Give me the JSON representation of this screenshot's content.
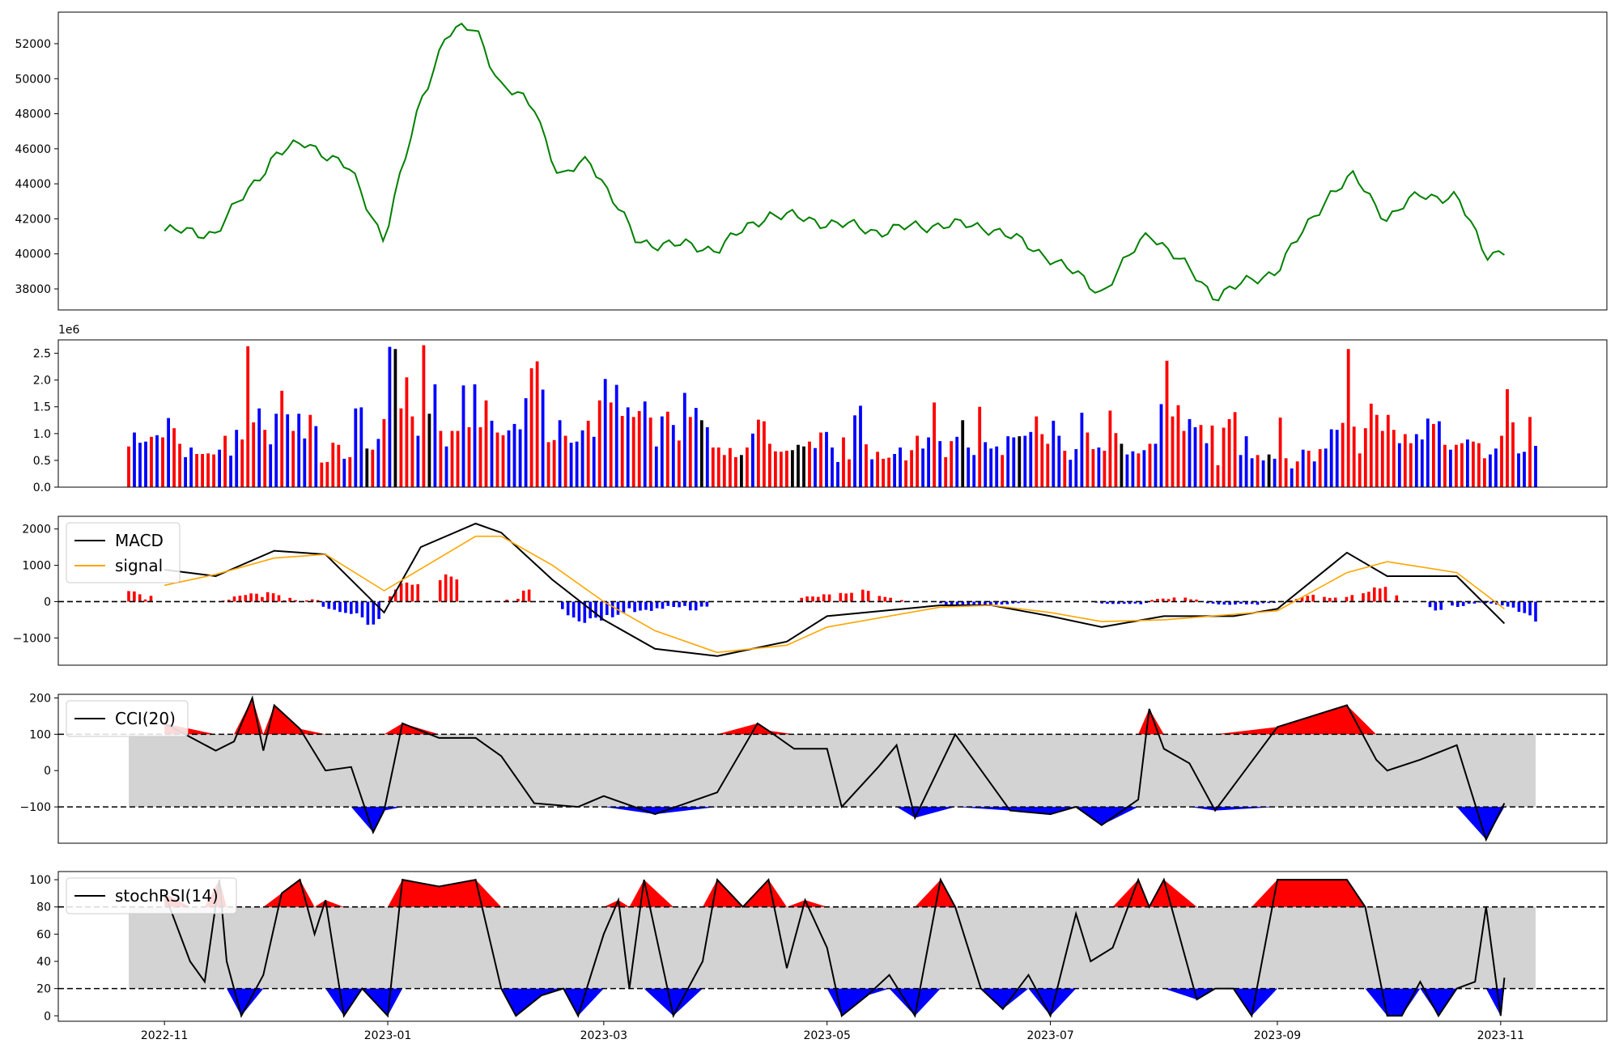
{
  "chart_data": [
    {
      "type": "line",
      "panel": "price",
      "ylim": [
        36800,
        53800
      ],
      "yticks": [
        "38000",
        "40000",
        "42000",
        "44000",
        "46000",
        "48000",
        "50000",
        "52000"
      ],
      "grid": false,
      "colors": {
        "line": "#008000"
      },
      "x": [
        "2022-11-01",
        "2022-11-15",
        "2022-12-01",
        "2022-12-10",
        "2022-12-22",
        "2022-12-31",
        "2023-01-10",
        "2023-01-17",
        "2023-01-25",
        "2023-02-01",
        "2023-02-10",
        "2023-02-17",
        "2023-02-25",
        "2023-03-10",
        "2023-04-01",
        "2023-04-15",
        "2023-05-01",
        "2023-05-15",
        "2023-06-01",
        "2023-06-15",
        "2023-07-01",
        "2023-07-15",
        "2023-07-28",
        "2023-08-15",
        "2023-09-01",
        "2023-09-15",
        "2023-09-22",
        "2023-10-01",
        "2023-10-10",
        "2023-10-20",
        "2023-10-28",
        "2023-11-02"
      ],
      "values": [
        41300,
        41200,
        45600,
        46400,
        44700,
        40800,
        48800,
        52500,
        53000,
        49500,
        48500,
        44200,
        45500,
        40700,
        40300,
        42300,
        41800,
        41300,
        41700,
        41500,
        39800,
        37800,
        41300,
        37600,
        39100,
        43400,
        44400,
        42000,
        43400,
        43200,
        40000,
        40200
      ]
    },
    {
      "type": "bar",
      "panel": "volume",
      "ylim": [
        0,
        2.75
      ],
      "yticks": [
        "0.0",
        "0.5",
        "1.0",
        "1.5",
        "2.0",
        "2.5"
      ],
      "offset_label": "1e6",
      "colors": {
        "up": "#ff0000",
        "down": "#0000ff",
        "flat": "#000000"
      },
      "values": [
        0.76,
        1.02,
        0.83,
        0.85,
        0.94,
        0.97,
        0.93,
        1.29,
        1.1,
        0.81,
        0.56,
        0.74,
        0.62,
        0.62,
        0.63,
        0.61,
        0.7,
        0.96,
        0.59,
        1.07,
        0.89,
        2.63,
        1.21,
        1.47,
        1.07,
        0.8,
        1.37,
        1.8,
        1.36,
        1.05,
        1.37,
        0.91,
        1.35,
        1.14,
        0.46,
        0.47,
        0.83,
        0.79,
        0.53,
        0.56,
        1.47,
        1.49,
        0.72,
        0.7,
        0.9,
        1.27,
        2.62,
        2.58,
        1.47,
        2.05,
        1.32,
        0.96,
        2.65,
        1.37,
        1.92,
        1.05,
        0.76,
        1.05,
        1.05,
        1.9,
        1.12,
        1.92,
        1.12,
        1.62,
        1.24,
        1.02,
        0.97,
        1.06,
        1.18,
        1.08,
        1.66,
        2.22,
        2.35,
        1.82,
        0.84,
        0.88,
        1.25,
        0.96,
        0.83,
        0.85,
        1.06,
        1.24,
        0.94,
        1.62,
        2.02,
        1.58,
        1.91,
        1.33,
        1.49,
        1.31,
        1.42,
        1.6,
        1.3,
        0.76,
        1.32,
        1.41,
        1.16,
        0.87,
        1.76,
        1.31,
        1.48,
        1.25,
        1.12,
        0.74,
        0.74,
        0.6,
        0.73,
        0.56,
        0.6,
        0.74,
        1.0,
        1.26,
        1.23,
        0.81,
        0.67,
        0.66,
        0.68,
        0.69,
        0.79,
        0.76,
        0.85,
        0.73,
        1.02,
        1.03,
        0.74,
        0.47,
        0.93,
        0.52,
        1.34,
        1.52,
        0.8,
        0.52,
        0.66,
        0.53,
        0.55,
        0.62,
        0.74,
        0.5,
        0.69,
        0.96,
        0.72,
        0.93,
        1.58,
        0.86,
        0.56,
        0.86,
        0.94,
        1.25,
        0.74,
        0.6,
        1.5,
        0.84,
        0.72,
        0.76,
        0.6,
        0.95,
        0.93,
        0.95,
        0.96,
        1.03,
        1.32,
        0.99,
        0.81,
        1.24,
        0.96,
        0.68,
        0.51,
        0.71,
        1.39,
        1.02,
        0.71,
        0.74,
        0.68,
        1.43,
        1.01,
        0.81,
        0.61,
        0.67,
        0.63,
        0.69,
        0.81,
        0.81,
        1.55,
        2.36,
        1.32,
        1.53,
        1.05,
        1.27,
        1.12,
        1.16,
        0.82,
        1.15,
        0.41,
        1.11,
        1.27,
        1.4,
        0.6,
        0.95,
        0.54,
        0.6,
        0.5,
        0.61,
        0.53,
        1.3,
        0.54,
        0.35,
        0.48,
        0.7,
        0.68,
        0.48,
        0.71,
        0.72,
        1.08,
        1.07,
        1.2,
        2.58,
        1.13,
        0.63,
        1.1,
        1.56,
        1.35,
        1.05,
        1.35,
        1.07,
        0.82,
        0.99,
        0.82,
        0.99,
        0.89,
        1.28,
        1.18,
        1.23,
        0.79,
        0.7,
        0.79,
        0.82,
        0.89,
        0.85,
        0.82,
        0.54,
        0.61,
        0.72,
        0.96,
        1.83,
        1.21,
        0.63,
        0.66,
        1.31,
        0.77
      ],
      "bar_colors": "rbbbrbrbrrbbrrrrbrbbrrrbrbbrbrbbrbrrrrbrbbkrbrbkrrrbrkbrbrrbrbrrbrrbbbbrrbrrbrbbbrbrbrbrbrrbrbbrbrbrbkbrrrrrkrbrrrrrrkkkrbrbbbrrbbrbrrrbbrrrbbrbrrbkbbrbbbrbbkbbrrrbbrbbbrrbrrrkbbrbrbbrrrrbbrbrrrrrbbbrbkbrrbrbrbrbbbrrrrrrrrrrbrrbbbrbrbrrbrrrbbrrrbbrbbrrbrrbbrbrbrrbr"
    },
    {
      "type": "line",
      "panel": "macd",
      "ylim": [
        -1750,
        2350
      ],
      "yticks": [
        "−1000",
        "0",
        "1000",
        "2000"
      ],
      "legend": [
        "MACD",
        "signal"
      ],
      "legend_position": "upper-left",
      "colors": {
        "macd": "#000000",
        "signal": "#ffa500",
        "hist_up": "#ff0000",
        "hist_down": "#0000ff"
      },
      "series": [
        {
          "name": "MACD",
          "x": [
            "2022-11-01",
            "2022-11-15",
            "2022-12-01",
            "2022-12-15",
            "2022-12-31",
            "2023-01-10",
            "2023-01-25",
            "2023-02-01",
            "2023-02-15",
            "2023-03-01",
            "2023-03-15",
            "2023-04-01",
            "2023-04-20",
            "2023-05-01",
            "2023-06-01",
            "2023-06-15",
            "2023-07-01",
            "2023-07-15",
            "2023-08-01",
            "2023-08-20",
            "2023-09-01",
            "2023-09-20",
            "2023-10-01",
            "2023-10-20",
            "2023-11-02"
          ],
          "values": [
            880,
            700,
            1400,
            1300,
            -300,
            1500,
            2150,
            1900,
            600,
            -500,
            -1300,
            -1500,
            -1100,
            -400,
            -100,
            -100,
            -400,
            -700,
            -400,
            -400,
            -200,
            1350,
            700,
            700,
            -600
          ]
        },
        {
          "name": "signal",
          "x": [
            "2022-11-01",
            "2022-11-15",
            "2022-12-01",
            "2022-12-15",
            "2022-12-31",
            "2023-01-10",
            "2023-01-25",
            "2023-02-01",
            "2023-02-15",
            "2023-03-01",
            "2023-03-15",
            "2023-04-01",
            "2023-04-20",
            "2023-05-01",
            "2023-06-01",
            "2023-06-15",
            "2023-07-01",
            "2023-07-15",
            "2023-08-01",
            "2023-08-20",
            "2023-09-01",
            "2023-09-20",
            "2023-10-01",
            "2023-10-20",
            "2023-11-02"
          ],
          "values": [
            450,
            750,
            1200,
            1300,
            300,
            900,
            1800,
            1800,
            1000,
            0,
            -800,
            -1400,
            -1200,
            -700,
            -150,
            -100,
            -300,
            -550,
            -500,
            -350,
            -250,
            800,
            1100,
            800,
            -200
          ]
        }
      ],
      "hist": [
        290,
        280,
        202,
        60,
        160,
        0,
        0,
        0,
        0,
        0,
        0,
        0,
        0,
        0,
        0,
        0,
        0,
        28,
        52,
        141,
        164,
        182,
        227,
        218,
        126,
        260,
        231,
        177,
        35,
        105,
        41,
        13,
        35,
        63,
        42,
        -140,
        -199,
        -223,
        -282,
        -309,
        -339,
        -319,
        -432,
        -634,
        -629,
        -477,
        0,
        148,
        334,
        505,
        525,
        465,
        479,
        0,
        0,
        0,
        592,
        749,
        690,
        611,
        0,
        0,
        0,
        0,
        0,
        25,
        0,
        0,
        52,
        0,
        77,
        302,
        331,
        0,
        0,
        0,
        0,
        0,
        -206,
        -374,
        -437,
        -544,
        -584,
        -460,
        -441,
        -519,
        -367,
        -429,
        -361,
        -299,
        -183,
        -285,
        -245,
        -225,
        -254,
        -180,
        -195,
        -117,
        -145,
        -153,
        -119,
        -238,
        -241,
        -135,
        -137,
        0,
        0,
        0,
        0,
        0,
        0,
        0,
        0,
        0,
        0,
        0,
        0,
        0,
        0,
        0,
        0,
        103,
        145,
        142,
        131,
        201,
        197,
        0,
        237,
        224,
        242,
        0,
        330,
        296,
        0,
        157,
        129,
        106,
        0,
        44,
        0,
        0,
        0,
        0,
        0,
        0,
        -45,
        -102,
        -112,
        -117,
        -130,
        -138,
        -97,
        -125,
        -92,
        -118,
        -82,
        -78,
        -72,
        -48,
        -39,
        -24,
        -26,
        -21,
        -17,
        -14,
        -11,
        0,
        0,
        0,
        0,
        0,
        0,
        0,
        -26,
        -50,
        -60,
        -62,
        -63,
        -56,
        -62,
        -51,
        -71,
        -36,
        47,
        77,
        83,
        70,
        113,
        0,
        111,
        63,
        57,
        0,
        -45,
        -53,
        -76,
        -80,
        -87,
        -78,
        -55,
        -75,
        -62,
        -85,
        -42,
        -37,
        -33,
        0,
        0,
        37,
        73,
        120,
        161,
        189,
        0,
        130,
        102,
        110,
        0,
        128,
        182,
        0,
        232,
        271,
        390,
        362,
        406,
        0,
        174,
        0,
        0,
        0,
        0,
        0,
        -149,
        -243,
        -224,
        0,
        -108,
        -145,
        -121,
        -55,
        -51,
        -24,
        -43,
        -54,
        -83,
        -100,
        -137,
        -163,
        -281,
        -315,
        -376,
        -549
      ]
    },
    {
      "type": "line",
      "panel": "cci",
      "ylim": [
        -200,
        210
      ],
      "yticks": [
        "−100",
        "0",
        "100",
        "200"
      ],
      "legend": [
        "CCI(20)"
      ],
      "legend_position": "upper-left",
      "colors": {
        "line": "#000000",
        "overbought": "#ff0000",
        "oversold": "#0000ff",
        "band": "#d3d3d3"
      },
      "thresholds": [
        100,
        -100
      ],
      "series": [
        {
          "name": "CCI(20)",
          "x": [
            "2022-11-01",
            "2022-11-15",
            "2022-11-20",
            "2022-11-25",
            "2022-11-28",
            "2022-12-01",
            "2022-12-08",
            "2022-12-15",
            "2022-12-22",
            "2022-12-28",
            "2022-12-31",
            "2023-01-05",
            "2023-01-15",
            "2023-01-25",
            "2023-02-01",
            "2023-02-10",
            "2023-02-22",
            "2023-03-01",
            "2023-03-15",
            "2023-04-01",
            "2023-04-12",
            "2023-04-15",
            "2023-04-22",
            "2023-05-01",
            "2023-05-05",
            "2023-05-15",
            "2023-05-20",
            "2023-05-25",
            "2023-06-05",
            "2023-06-20",
            "2023-07-01",
            "2023-07-08",
            "2023-07-15",
            "2023-07-25",
            "2023-07-28",
            "2023-08-01",
            "2023-08-08",
            "2023-08-15",
            "2023-09-01",
            "2023-09-20",
            "2023-09-28",
            "2023-10-01",
            "2023-10-10",
            "2023-10-20",
            "2023-10-28",
            "2023-11-02"
          ],
          "values": [
            130,
            55,
            80,
            200,
            55,
            180,
            115,
            0,
            10,
            -170,
            -110,
            130,
            90,
            90,
            40,
            -90,
            -100,
            -70,
            -120,
            -60,
            130,
            110,
            60,
            60,
            -100,
            10,
            70,
            -130,
            100,
            -110,
            -120,
            -100,
            -150,
            -80,
            170,
            60,
            20,
            -110,
            120,
            180,
            30,
            0,
            30,
            70,
            -190,
            -90
          ]
        }
      ]
    },
    {
      "type": "line",
      "panel": "stochrsi",
      "ylim": [
        -4,
        106
      ],
      "yticks": [
        "0",
        "20",
        "40",
        "60",
        "80",
        "100"
      ],
      "legend": [
        "stochRSI(14)"
      ],
      "legend_position": "upper-left",
      "colors": {
        "line": "#000000",
        "overbought": "#ff0000",
        "oversold": "#0000ff",
        "band": "#d3d3d3"
      },
      "thresholds": [
        80,
        20
      ],
      "x": [
        "2022-11",
        "2023-01",
        "2023-03",
        "2023-05",
        "2023-07",
        "2023-09",
        "2023-11"
      ],
      "series": [
        {
          "name": "stochRSI(14)",
          "x": [
            "2022-11-01",
            "2022-11-08",
            "2022-11-12",
            "2022-11-16",
            "2022-11-18",
            "2022-11-22",
            "2022-11-28",
            "2022-12-03",
            "2022-12-08",
            "2022-12-12",
            "2022-12-15",
            "2022-12-20",
            "2022-12-25",
            "2023-01-01",
            "2023-01-05",
            "2023-01-15",
            "2023-01-25",
            "2023-02-01",
            "2023-02-05",
            "2023-02-12",
            "2023-02-18",
            "2023-02-22",
            "2023-03-01",
            "2023-03-05",
            "2023-03-08",
            "2023-03-12",
            "2023-03-20",
            "2023-03-28",
            "2023-04-01",
            "2023-04-08",
            "2023-04-15",
            "2023-04-20",
            "2023-04-25",
            "2023-05-01",
            "2023-05-05",
            "2023-05-12",
            "2023-05-18",
            "2023-05-25",
            "2023-06-01",
            "2023-06-05",
            "2023-06-12",
            "2023-06-18",
            "2023-06-25",
            "2023-07-01",
            "2023-07-08",
            "2023-07-12",
            "2023-07-18",
            "2023-07-25",
            "2023-07-28",
            "2023-08-01",
            "2023-08-10",
            "2023-08-15",
            "2023-08-20",
            "2023-08-25",
            "2023-09-01",
            "2023-09-10",
            "2023-09-20",
            "2023-09-25",
            "2023-10-01",
            "2023-10-05",
            "2023-10-10",
            "2023-10-15",
            "2023-10-20",
            "2023-10-25",
            "2023-10-28",
            "2023-11-01",
            "2023-11-02"
          ],
          "values": [
            90,
            40,
            25,
            100,
            40,
            0,
            30,
            90,
            100,
            60,
            85,
            0,
            20,
            0,
            100,
            95,
            100,
            20,
            0,
            15,
            20,
            0,
            60,
            85,
            20,
            100,
            0,
            40,
            100,
            80,
            100,
            35,
            85,
            50,
            0,
            15,
            30,
            0,
            100,
            80,
            20,
            5,
            30,
            0,
            75,
            40,
            50,
            100,
            80,
            100,
            12,
            20,
            20,
            0,
            100,
            100,
            100,
            80,
            0,
            0,
            25,
            0,
            20,
            25,
            80,
            0,
            28
          ]
        }
      ]
    }
  ]
}
